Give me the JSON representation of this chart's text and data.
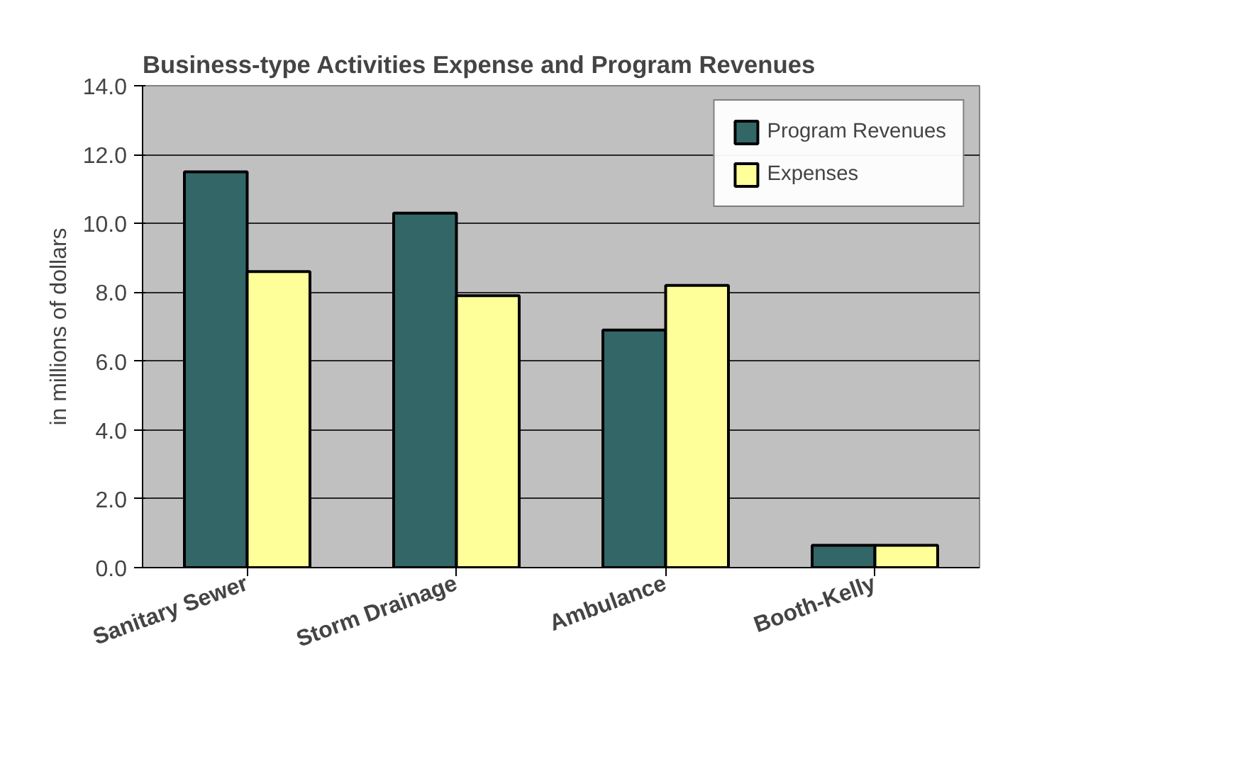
{
  "chart_data": {
    "type": "bar",
    "title": "Business-type  Activities Expense and Program Revenues",
    "ylabel": "in millions of dollars",
    "categories": [
      "Sanitary Sewer",
      "Storm Drainage",
      "Ambulance",
      "Booth-Kelly"
    ],
    "series": [
      {
        "name": "Program Revenues",
        "color": "#336666",
        "values": [
          11.5,
          10.3,
          6.9,
          0.65
        ]
      },
      {
        "name": "Expenses",
        "color": "#ffff99",
        "values": [
          8.6,
          7.9,
          8.2,
          0.65
        ]
      }
    ],
    "ylim": [
      0,
      14
    ],
    "yticks": [
      {
        "value": 0,
        "label": "0.0"
      },
      {
        "value": 2,
        "label": "2.0"
      },
      {
        "value": 4,
        "label": "4.0"
      },
      {
        "value": 6,
        "label": "6.0"
      },
      {
        "value": 8,
        "label": "8.0"
      },
      {
        "value": 10,
        "label": "10.0"
      },
      {
        "value": 12,
        "label": "12.0"
      },
      {
        "value": 14,
        "label": "14.0"
      }
    ],
    "grid": "y",
    "legend": "top right"
  }
}
